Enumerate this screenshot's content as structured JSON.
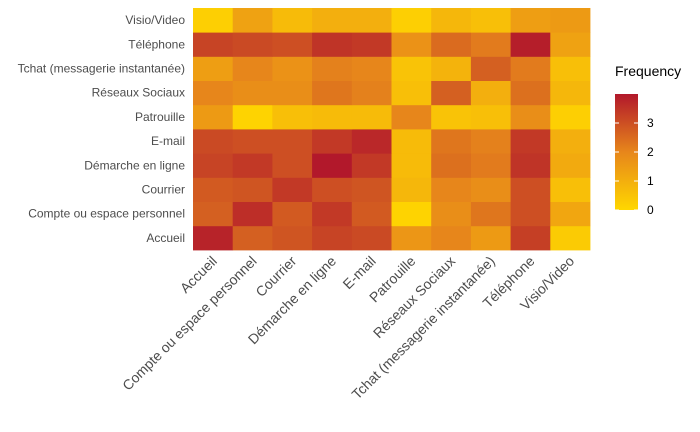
{
  "chart_data": {
    "type": "heatmap",
    "x_categories": [
      "Accueil",
      "Compte ou espace personnel",
      "Courrier",
      "Démarche en ligne",
      "E-mail",
      "Patrouille",
      "Réseaux Sociaux",
      "Tchat (messagerie instantanée)",
      "Téléphone",
      "Visio/Video"
    ],
    "y_categories": [
      "Accueil",
      "Compte ou espace personnel",
      "Courrier",
      "Démarche en ligne",
      "E-mail",
      "Patrouille",
      "Réseaux Sociaux",
      "Tchat (messagerie instantanée)",
      "Téléphone",
      "Visio/Video"
    ],
    "values": [
      [
        3.8,
        2.7,
        2.9,
        3.2,
        3.1,
        1.6,
        2.0,
        1.5,
        3.3,
        0.3
      ],
      [
        2.7,
        3.6,
        2.8,
        3.4,
        2.8,
        0.1,
        1.8,
        2.3,
        3.0,
        1.2
      ],
      [
        2.8,
        2.9,
        3.4,
        3.0,
        2.9,
        0.8,
        2.0,
        1.8,
        3.0,
        0.6
      ],
      [
        3.2,
        3.4,
        3.0,
        4.0,
        3.4,
        0.7,
        2.4,
        2.2,
        3.5,
        1.1
      ],
      [
        3.1,
        3.0,
        3.0,
        3.4,
        3.7,
        0.7,
        2.3,
        2.1,
        3.4,
        1.0
      ],
      [
        1.5,
        0.1,
        0.6,
        0.7,
        0.7,
        2.0,
        0.5,
        0.6,
        1.8,
        0.2
      ],
      [
        2.0,
        1.8,
        1.8,
        2.3,
        2.1,
        0.6,
        2.7,
        1.0,
        2.4,
        0.8
      ],
      [
        1.4,
        2.0,
        1.7,
        2.1,
        2.0,
        0.5,
        0.9,
        2.7,
        2.2,
        0.6
      ],
      [
        3.2,
        3.1,
        3.0,
        3.5,
        3.4,
        1.7,
        2.5,
        2.2,
        3.9,
        1.3
      ],
      [
        0.2,
        1.3,
        0.7,
        1.0,
        1.0,
        0.2,
        0.8,
        0.6,
        1.4,
        1.5
      ]
    ],
    "legend": {
      "title": "Frequency",
      "ticks": [
        0,
        1,
        2,
        3
      ],
      "range": [
        0,
        4
      ],
      "position": "right"
    },
    "grid": false,
    "colors": {
      "low": "#FFD700",
      "mid": "#E7861B",
      "high": "#B2182B"
    }
  }
}
